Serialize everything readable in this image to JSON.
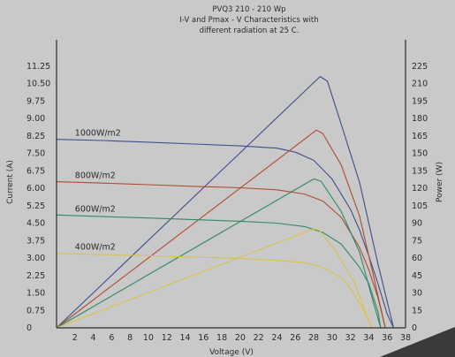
{
  "chart_data": {
    "type": "line",
    "title_lines": [
      "PVQ3 210 - 210 Wp",
      "I-V and Pmax - V Characteristics with",
      "different radiation at 25 C."
    ],
    "xlabel": "Voltage (V)",
    "ylabel_left": "Current (A)",
    "ylabel_right": "Power (W)",
    "xlim": [
      0,
      38
    ],
    "ylim_left": [
      0,
      12
    ],
    "ylim_right": [
      0,
      240
    ],
    "x_ticks": [
      0,
      2,
      4,
      6,
      8,
      10,
      12,
      14,
      16,
      18,
      20,
      22,
      24,
      26,
      28,
      30,
      32,
      34,
      36,
      38
    ],
    "left_ticks": [
      "0",
      "0.75",
      "1.50",
      "2.25",
      "3.00",
      "3.75",
      "4.50",
      "5.25",
      "6.00",
      "6.75",
      "7.50",
      "8.25",
      "9.00",
      "9.75",
      "10.50",
      "11.25"
    ],
    "right_ticks": [
      "0",
      "15",
      "30",
      "45",
      "60",
      "75",
      "90",
      "105",
      "120",
      "135",
      "150",
      "165",
      "180",
      "195",
      "210",
      "225"
    ],
    "grid": false,
    "colors": {
      "1000": "#3e4e8c",
      "800": "#b04a33",
      "600": "#2e8a62",
      "400": "#d9c24a",
      "axis": "#2b2b2b"
    },
    "series": [
      {
        "name": "1000W/m2",
        "color_key": "1000",
        "iv": [
          [
            0,
            8.1
          ],
          [
            5,
            8.05
          ],
          [
            10,
            7.98
          ],
          [
            15,
            7.9
          ],
          [
            20,
            7.82
          ],
          [
            24,
            7.72
          ],
          [
            26,
            7.55
          ],
          [
            28,
            7.2
          ],
          [
            30,
            6.4
          ],
          [
            32,
            5.1
          ],
          [
            33,
            4.2
          ],
          [
            34,
            3.1
          ],
          [
            35,
            1.9
          ],
          [
            36,
            0.6
          ],
          [
            36.7,
            0
          ]
        ],
        "power": [
          [
            0,
            0
          ],
          [
            28.7,
            216
          ],
          [
            29.5,
            212
          ],
          [
            31,
            175
          ],
          [
            33,
            125
          ],
          [
            35,
            55
          ],
          [
            36.7,
            0
          ]
        ]
      },
      {
        "name": "800W/m2",
        "color_key": "800",
        "iv": [
          [
            0,
            6.28
          ],
          [
            5,
            6.22
          ],
          [
            10,
            6.15
          ],
          [
            15,
            6.08
          ],
          [
            20,
            6.02
          ],
          [
            24,
            5.93
          ],
          [
            27,
            5.75
          ],
          [
            29,
            5.45
          ],
          [
            31,
            4.75
          ],
          [
            33,
            3.45
          ],
          [
            34,
            2.5
          ],
          [
            35,
            1.3
          ],
          [
            35.8,
            0
          ]
        ],
        "power": [
          [
            0,
            0
          ],
          [
            28.3,
            170
          ],
          [
            29.0,
            167
          ],
          [
            31,
            140
          ],
          [
            33,
            96
          ],
          [
            34.5,
            45
          ],
          [
            35.8,
            0
          ]
        ]
      },
      {
        "name": "600W/m2",
        "color_key": "600",
        "iv": [
          [
            0,
            4.85
          ],
          [
            5,
            4.78
          ],
          [
            10,
            4.72
          ],
          [
            15,
            4.65
          ],
          [
            20,
            4.58
          ],
          [
            24,
            4.5
          ],
          [
            27,
            4.35
          ],
          [
            29,
            4.1
          ],
          [
            31,
            3.6
          ],
          [
            33,
            2.6
          ],
          [
            34,
            1.9
          ],
          [
            35,
            0.7
          ],
          [
            35.3,
            0
          ]
        ],
        "power": [
          [
            0,
            0
          ],
          [
            28.0,
            128
          ],
          [
            28.8,
            126
          ],
          [
            31,
            100
          ],
          [
            33,
            65
          ],
          [
            34.5,
            22
          ],
          [
            35.3,
            0
          ]
        ]
      },
      {
        "name": "400W/m2",
        "color_key": "400",
        "iv": [
          [
            0,
            3.2
          ],
          [
            5,
            3.15
          ],
          [
            10,
            3.1
          ],
          [
            15,
            3.04
          ],
          [
            20,
            2.98
          ],
          [
            24,
            2.9
          ],
          [
            27,
            2.8
          ],
          [
            29,
            2.6
          ],
          [
            31,
            2.15
          ],
          [
            32,
            1.7
          ],
          [
            33,
            1.05
          ],
          [
            34,
            0.3
          ],
          [
            34.4,
            0
          ]
        ],
        "power": [
          [
            0,
            0
          ],
          [
            28.0,
            85
          ],
          [
            28.6,
            84
          ],
          [
            30.5,
            65
          ],
          [
            32.5,
            38
          ],
          [
            33.8,
            10
          ],
          [
            34.4,
            0
          ]
        ]
      }
    ]
  }
}
